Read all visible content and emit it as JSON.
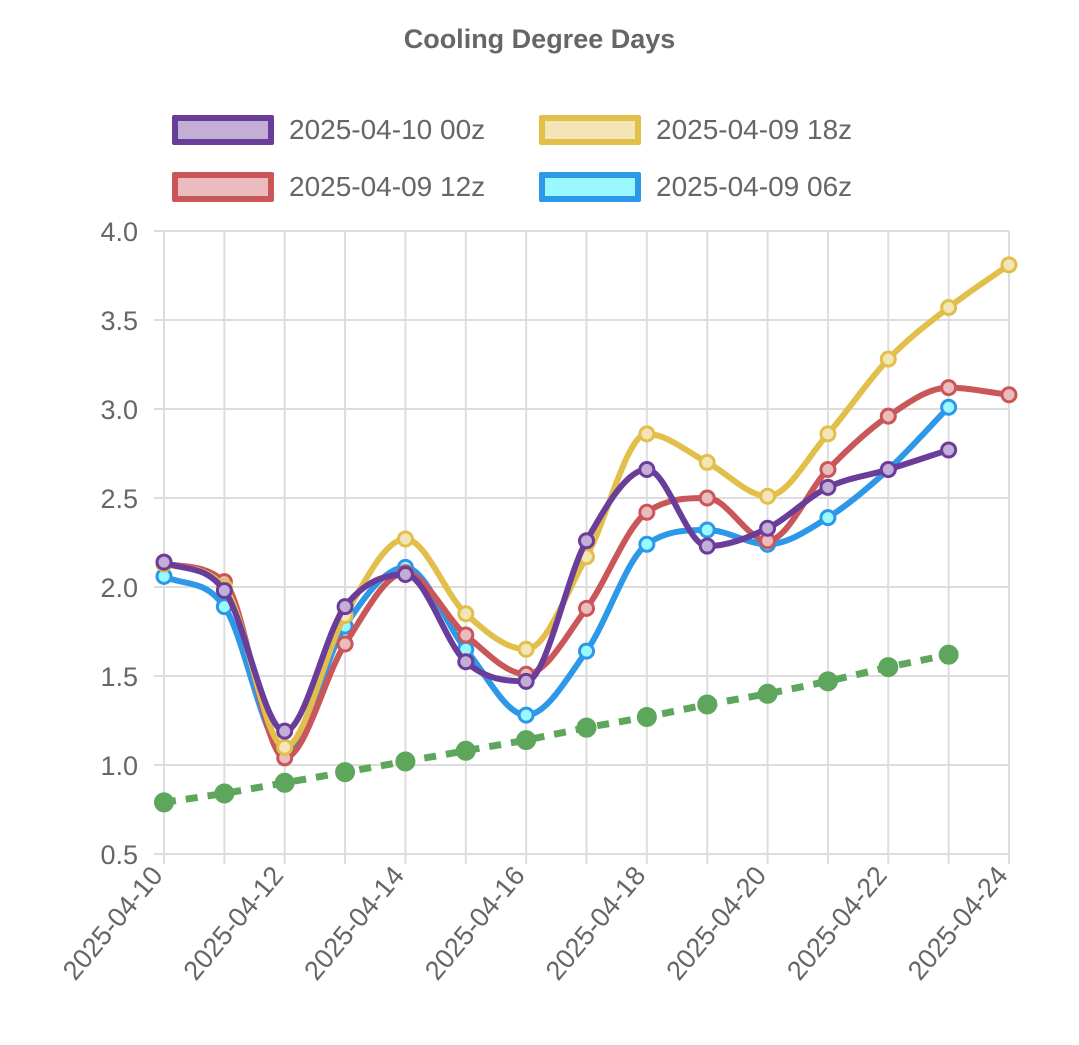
{
  "chart_data": {
    "type": "line",
    "title": "Cooling Degree Days",
    "xlabel": "",
    "ylabel": "",
    "x": [
      "2025-04-10",
      "2025-04-11",
      "2025-04-12",
      "2025-04-13",
      "2025-04-14",
      "2025-04-15",
      "2025-04-16",
      "2025-04-17",
      "2025-04-18",
      "2025-04-19",
      "2025-04-20",
      "2025-04-21",
      "2025-04-22",
      "2025-04-23",
      "2025-04-24"
    ],
    "x_tick_labels": [
      "2025-04-10",
      "2025-04-12",
      "2025-04-14",
      "2025-04-16",
      "2025-04-18",
      "2025-04-20",
      "2025-04-22",
      "2025-04-24"
    ],
    "y_tick_labels": [
      "0.5",
      "1.0",
      "1.5",
      "2.0",
      "2.5",
      "3.0",
      "3.5",
      "4.0"
    ],
    "ylim": [
      0.5,
      4.0
    ],
    "grid": true,
    "legend_position": "top",
    "series": [
      {
        "name": "2025-04-10 00z",
        "color": "#6a3d9a",
        "fill": "#c3aed6",
        "style": "solid",
        "values": [
          2.14,
          1.98,
          1.19,
          1.89,
          2.07,
          1.58,
          1.47,
          2.26,
          2.66,
          2.23,
          2.33,
          2.56,
          2.66,
          2.77,
          null
        ]
      },
      {
        "name": "2025-04-09 18z",
        "color": "#e2bf4b",
        "fill": "#f3e5b5",
        "style": "solid",
        "values": [
          2.13,
          2.0,
          1.1,
          1.84,
          2.27,
          1.85,
          1.65,
          2.17,
          2.86,
          2.7,
          2.51,
          2.86,
          3.28,
          3.57,
          3.81
        ]
      },
      {
        "name": "2025-04-09 12z",
        "color": "#c9575a",
        "fill": "#ebbcbd",
        "style": "solid",
        "values": [
          2.13,
          2.03,
          1.04,
          1.68,
          2.08,
          1.73,
          1.51,
          1.88,
          2.42,
          2.5,
          2.26,
          2.66,
          2.96,
          3.12,
          3.08
        ]
      },
      {
        "name": "2025-04-09 06z",
        "color": "#2d97e8",
        "fill": "#9af9ff",
        "style": "solid",
        "values": [
          2.06,
          1.89,
          1.08,
          1.78,
          2.11,
          1.65,
          1.28,
          1.64,
          2.24,
          2.32,
          2.24,
          2.39,
          2.66,
          3.01,
          null
        ]
      },
      {
        "name": "",
        "color": "#5ea65c",
        "fill": "#5ea65c",
        "style": "dotted",
        "values": [
          0.79,
          0.84,
          0.9,
          0.96,
          1.02,
          1.08,
          1.14,
          1.21,
          1.27,
          1.34,
          1.4,
          1.47,
          1.55,
          1.62,
          null
        ]
      }
    ]
  },
  "legend": {
    "items": [
      {
        "label": "2025-04-10 00z",
        "border": "#6a3d9a",
        "fill": "#c3aed6"
      },
      {
        "label": "2025-04-09 18z",
        "border": "#e2bf4b",
        "fill": "#f3e5b5"
      },
      {
        "label": "2025-04-09 12z",
        "border": "#c9575a",
        "fill": "#ebbcbd"
      },
      {
        "label": "2025-04-09 06z",
        "border": "#2d97e8",
        "fill": "#9af9ff"
      }
    ]
  }
}
